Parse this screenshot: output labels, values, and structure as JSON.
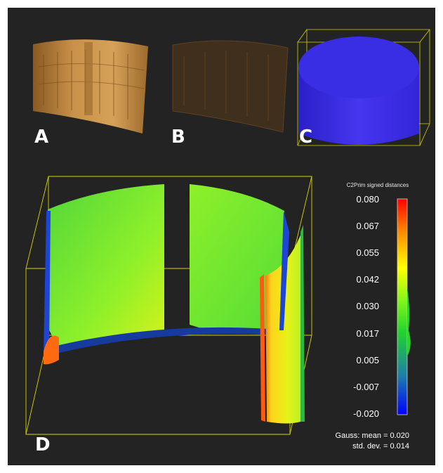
{
  "panels": {
    "a_label": "A",
    "b_label": "B",
    "c_label": "C",
    "d_label": "D"
  },
  "colorbar": {
    "title": "C2Prim signed distances",
    "ticks": [
      "0.080",
      "0.067",
      "0.055",
      "0.042",
      "0.030",
      "0.017",
      "0.005",
      "-0.007",
      "-0.020"
    ],
    "gradient": [
      "#0000ff",
      "#1e7fa8",
      "#22d12f",
      "#7cf51a",
      "#ffff00",
      "#ff8800",
      "#ff0000"
    ]
  },
  "stats": {
    "mean_label": "Gauss: mean = 0.020",
    "std_label": "std. dev. = 0.014"
  },
  "colors": {
    "background": "#232323",
    "bbox": "#d7d400",
    "cylinder": "#3a2fe6",
    "mural": "#b8823e"
  }
}
